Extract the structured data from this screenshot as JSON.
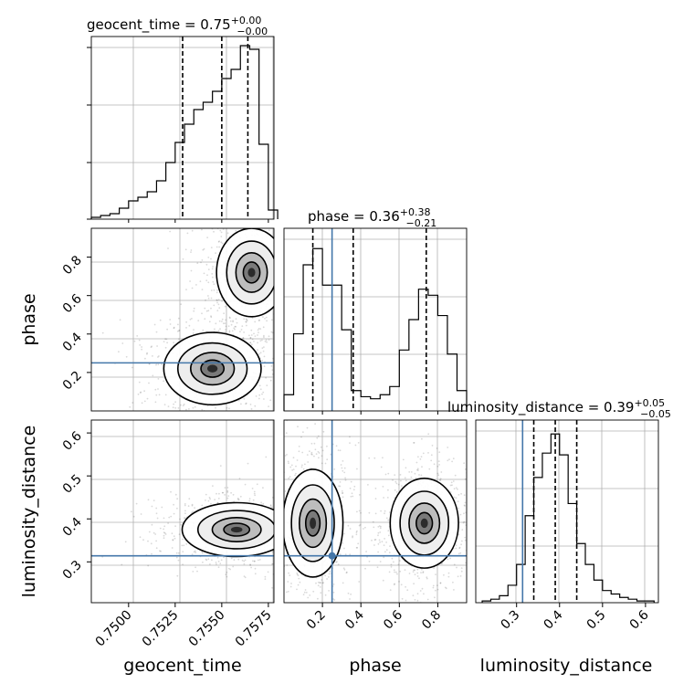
{
  "chart_data": {
    "type": "corner",
    "parameters": [
      "geocent_time",
      "phase",
      "luminosity_distance"
    ],
    "truth_color": "#4477aa",
    "truths": {
      "phase": 0.25,
      "luminosity_distance": 0.314
    },
    "diagonal": [
      {
        "parameter": "geocent_time",
        "title_text": "geocent_time = 0.75",
        "upper_err": "+0.00",
        "lower_err": "−0.00",
        "median": 0.755,
        "quantiles": [
          0.7529,
          0.755,
          0.7564
        ],
        "xlim": [
          0.748,
          0.7578
        ],
        "ticks": [
          0.75,
          0.7525,
          0.755,
          0.7575
        ],
        "tick_labels": [
          "0.7500",
          "0.7525",
          "0.7550",
          "0.7575"
        ],
        "bins": [
          0.748,
          0.7485,
          0.749,
          0.7495,
          0.75,
          0.7505,
          0.751,
          0.7515,
          0.752,
          0.7525,
          0.753,
          0.7535,
          0.754,
          0.7545,
          0.755,
          0.7555,
          0.756,
          0.7565,
          0.757,
          0.7575,
          0.758
        ],
        "counts": [
          1,
          2,
          3,
          6,
          10,
          12,
          15,
          21,
          31,
          42,
          52,
          60,
          64,
          70,
          77,
          82,
          95,
          93,
          41,
          5
        ],
        "ymax": 100
      },
      {
        "parameter": "phase",
        "title_text": "phase = 0.36",
        "upper_err": "+0.38",
        "lower_err": "−0.21",
        "median": 0.36,
        "quantiles": [
          0.15,
          0.36,
          0.74
        ],
        "xlim": [
          0.0,
          0.95
        ],
        "ticks": [
          0.2,
          0.4,
          0.6,
          0.8
        ],
        "tick_labels": [
          "0.2",
          "0.4",
          "0.6",
          "0.8"
        ],
        "bins": [
          0.0,
          0.05,
          0.1,
          0.15,
          0.2,
          0.25,
          0.3,
          0.35,
          0.4,
          0.45,
          0.5,
          0.55,
          0.6,
          0.65,
          0.7,
          0.75,
          0.8,
          0.85,
          0.9,
          0.95
        ],
        "counts": [
          8,
          38,
          72,
          80,
          62,
          62,
          40,
          10,
          7,
          6,
          8,
          12,
          30,
          45,
          60,
          57,
          47,
          28,
          10
        ],
        "ymax": 90
      },
      {
        "parameter": "luminosity_distance",
        "title_text": "luminosity_distance = 0.39",
        "upper_err": "+0.05",
        "lower_err": "−0.05",
        "median": 0.39,
        "quantiles": [
          0.34,
          0.39,
          0.44
        ],
        "xlim": [
          0.205,
          0.63
        ],
        "ticks": [
          0.3,
          0.4,
          0.5,
          0.6
        ],
        "tick_labels": [
          "0.3",
          "0.4",
          "0.5",
          "0.6"
        ],
        "bins": [
          0.22,
          0.24,
          0.26,
          0.28,
          0.3,
          0.32,
          0.34,
          0.36,
          0.38,
          0.4,
          0.42,
          0.44,
          0.46,
          0.48,
          0.5,
          0.52,
          0.54,
          0.56,
          0.58,
          0.6,
          0.62
        ],
        "counts": [
          1,
          2,
          4,
          10,
          22,
          50,
          72,
          86,
          97,
          85,
          57,
          34,
          22,
          13,
          7,
          5,
          3,
          2,
          1,
          1
        ],
        "ymax": 105
      }
    ],
    "panels_2d": [
      {
        "x": "geocent_time",
        "y": "phase",
        "ylim": [
          0.0,
          0.95
        ],
        "yticks": [
          0.2,
          0.4,
          0.6,
          0.8
        ],
        "ytick_labels": [
          "0.2",
          "0.4",
          "0.6",
          "0.8"
        ],
        "modes": [
          {
            "cx": 0.7566,
            "cy": 0.72,
            "rx": 0.0018,
            "ry": 0.22,
            "weight": 1.0
          },
          {
            "cx": 0.7545,
            "cy": 0.22,
            "rx": 0.0025,
            "ry": 0.18,
            "weight": 0.85
          }
        ]
      },
      {
        "x": "geocent_time",
        "y": "luminosity_distance",
        "ylim": [
          0.205,
          0.63
        ],
        "yticks": [
          0.3,
          0.4,
          0.5,
          0.6
        ],
        "ytick_labels": [
          "0.3",
          "0.4",
          "0.5",
          "0.6"
        ],
        "modes": [
          {
            "cx": 0.7558,
            "cy": 0.375,
            "rx": 0.0028,
            "ry": 0.06,
            "weight": 1.0
          }
        ]
      },
      {
        "x": "phase",
        "y": "luminosity_distance",
        "ylim": [
          0.205,
          0.63
        ],
        "yticks": [
          0.3,
          0.4,
          0.5,
          0.6
        ],
        "ytick_labels": [
          "0.3",
          "0.4",
          "0.5",
          "0.6"
        ],
        "modes": [
          {
            "cx": 0.15,
            "cy": 0.39,
            "rx": 0.15,
            "ry": 0.12,
            "weight": 1.0
          },
          {
            "cx": 0.73,
            "cy": 0.39,
            "rx": 0.17,
            "ry": 0.1,
            "weight": 0.95
          }
        ]
      }
    ]
  }
}
